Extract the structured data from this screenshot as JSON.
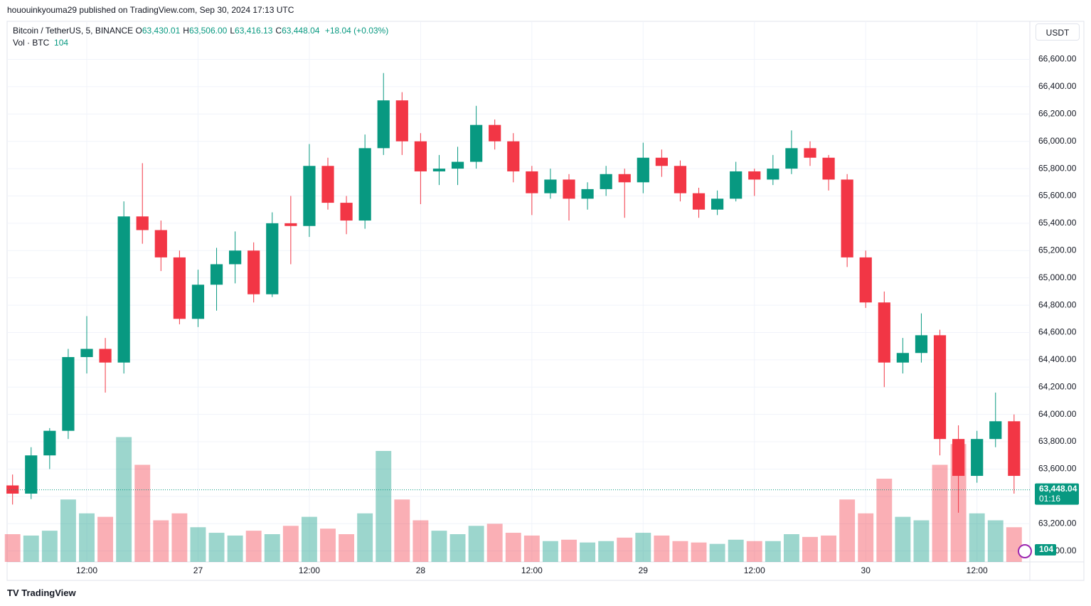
{
  "header": "hououinkyouma29 published on TradingView.com, Sep 30, 2024 17:13 UTC",
  "footer": "TradingView",
  "chart_data": {
    "type": "candlestick",
    "currency": "USDT",
    "legend": {
      "symbol": "Bitcoin / TetherUS, 5, BINANCE",
      "ohlc": [
        {
          "key": "O",
          "value": "63,430.01"
        },
        {
          "key": "H",
          "value": "63,506.00"
        },
        {
          "key": "L",
          "value": "63,416.13"
        },
        {
          "key": "C",
          "value": "63,448.04"
        }
      ],
      "change": "+18.04 (+0.03%)",
      "volume_label": "Vol · BTC",
      "volume_value": "104"
    },
    "up_color": "#089981",
    "down_color": "#f23645",
    "x": [
      4,
      6,
      8,
      10,
      12,
      14,
      16,
      18,
      20,
      22,
      24,
      26,
      28,
      30,
      32,
      34,
      36,
      38,
      40,
      42,
      44,
      46,
      48,
      50,
      52,
      54,
      56,
      58,
      60,
      62,
      64,
      66,
      68,
      70,
      72,
      74,
      76,
      78,
      80,
      82,
      84,
      86,
      88,
      90,
      92,
      94,
      96,
      98,
      100,
      102,
      104,
      106,
      108,
      110,
      112
    ],
    "open": [
      63480,
      63420,
      63700,
      63880,
      64420,
      64480,
      64380,
      65450,
      65350,
      65150,
      64700,
      64950,
      65100,
      65200,
      64880,
      65400,
      65380,
      65820,
      65550,
      65420,
      65950,
      66300,
      66000,
      65780,
      65800,
      65850,
      66120,
      66000,
      65780,
      65620,
      65720,
      65580,
      65650,
      65760,
      65700,
      65880,
      65820,
      65620,
      65500,
      65580,
      65780,
      65720,
      65800,
      65950,
      65880,
      65720,
      65150,
      64820,
      64380,
      64450,
      64580,
      63820,
      63550,
      63820,
      63950
    ],
    "high": [
      63560,
      63760,
      63900,
      64480,
      64720,
      64560,
      65560,
      65840,
      65420,
      65200,
      65060,
      65220,
      65340,
      65260,
      65480,
      65600,
      65980,
      65880,
      65600,
      66050,
      66500,
      66360,
      66060,
      65900,
      65960,
      66260,
      66160,
      66060,
      65820,
      65800,
      65760,
      65700,
      65820,
      65800,
      65990,
      65940,
      65860,
      65660,
      65640,
      65850,
      65800,
      65900,
      66080,
      66000,
      65900,
      65760,
      65200,
      64900,
      64560,
      64740,
      64620,
      63920,
      63880,
      64160,
      64000
    ],
    "low": [
      63340,
      63380,
      63600,
      63820,
      64300,
      64160,
      64300,
      65250,
      65050,
      64660,
      64640,
      64760,
      64960,
      64820,
      64860,
      65100,
      65300,
      65500,
      65320,
      65360,
      65900,
      65900,
      65540,
      65680,
      65680,
      65800,
      65940,
      65700,
      65460,
      65580,
      65420,
      65500,
      65600,
      65440,
      65620,
      65740,
      65560,
      65440,
      65460,
      65560,
      65600,
      65680,
      65760,
      65820,
      65640,
      65080,
      64780,
      64200,
      64300,
      64380,
      63700,
      63280,
      63500,
      63760,
      63420
    ],
    "close": [
      63420,
      63700,
      63880,
      64420,
      64480,
      64380,
      65450,
      65350,
      65150,
      64700,
      64950,
      65100,
      65200,
      64880,
      65400,
      65380,
      65820,
      65550,
      65420,
      65950,
      66300,
      66000,
      65780,
      65800,
      65850,
      66120,
      66000,
      65780,
      65620,
      65720,
      65580,
      65650,
      65760,
      65700,
      65880,
      65820,
      65620,
      65500,
      65580,
      65780,
      65720,
      65800,
      65950,
      65880,
      65720,
      65150,
      64820,
      64380,
      64450,
      64580,
      63820,
      63550,
      63820,
      63950,
      63550
    ],
    "volume": [
      400,
      380,
      450,
      900,
      700,
      650,
      1800,
      1400,
      600,
      700,
      500,
      420,
      380,
      450,
      400,
      520,
      650,
      480,
      400,
      700,
      1600,
      900,
      600,
      450,
      400,
      520,
      550,
      420,
      380,
      300,
      320,
      280,
      300,
      350,
      420,
      380,
      300,
      280,
      260,
      320,
      300,
      300,
      400,
      360,
      380,
      900,
      700,
      1200,
      650,
      600,
      1400,
      1700,
      700,
      600,
      500
    ],
    "vlim": [
      0,
      4000
    ],
    "xlim": [
      3.41,
      113.7
    ],
    "xticks": [
      {
        "value": 12,
        "label": "12:00"
      },
      {
        "value": 24,
        "label": "27"
      },
      {
        "value": 36,
        "label": "12:00"
      },
      {
        "value": 48,
        "label": "28"
      },
      {
        "value": 60,
        "label": "12:00"
      },
      {
        "value": 72,
        "label": "29"
      },
      {
        "value": 84,
        "label": "12:00"
      },
      {
        "value": 96,
        "label": "30"
      },
      {
        "value": 108,
        "label": "12:00"
      }
    ],
    "ylim": [
      62920,
      66660
    ],
    "yticks": [
      {
        "value": 63000,
        "label": "63,000.00"
      },
      {
        "value": 63200,
        "label": "63,200.00"
      },
      {
        "value": 63400,
        "label": "63,400.00"
      },
      {
        "value": 63600,
        "label": "63,600.00"
      },
      {
        "value": 63800,
        "label": "63,800.00"
      },
      {
        "value": 64000,
        "label": "64,000.00"
      },
      {
        "value": 64200,
        "label": "64,200.00"
      },
      {
        "value": 64400,
        "label": "64,400.00"
      },
      {
        "value": 64600,
        "label": "64,600.00"
      },
      {
        "value": 64800,
        "label": "64,800.00"
      },
      {
        "value": 65000,
        "label": "65,000.00"
      },
      {
        "value": 65200,
        "label": "65,200.00"
      },
      {
        "value": 65400,
        "label": "65,400.00"
      },
      {
        "value": 65600,
        "label": "65,600.00"
      },
      {
        "value": 65800,
        "label": "65,800.00"
      },
      {
        "value": 66000,
        "label": "66,000.00"
      },
      {
        "value": 66200,
        "label": "66,200.00"
      },
      {
        "value": 66400,
        "label": "66,400.00"
      },
      {
        "value": 66600,
        "label": "66,600.00"
      }
    ],
    "grid": true,
    "last_price": {
      "value": 63448.04,
      "label": "63,448.04"
    },
    "countdown": "01:16",
    "volume_badge": "104"
  }
}
